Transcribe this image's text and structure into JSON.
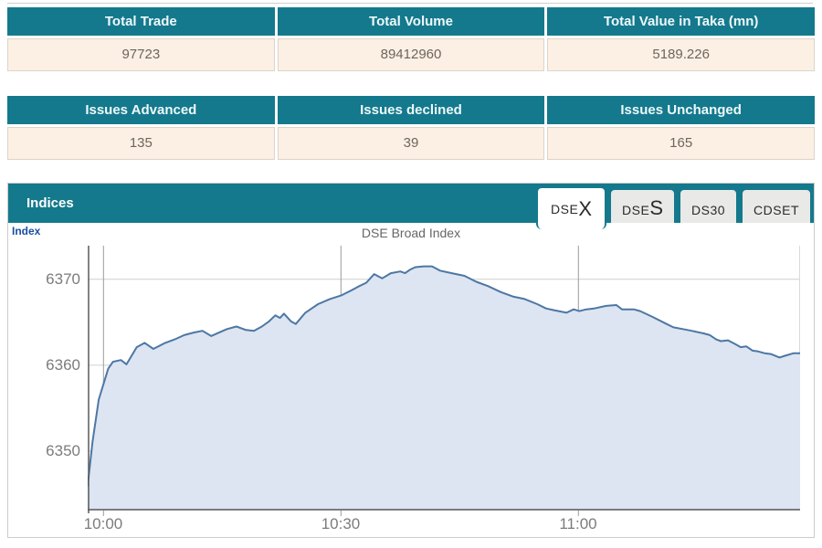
{
  "summary_tables": {
    "trade": {
      "headers": [
        "Total Trade",
        "Total Volume",
        "Total Value in Taka (mn)"
      ],
      "values": [
        "97723",
        "89412960",
        "5189.226"
      ]
    },
    "issues": {
      "headers": [
        "Issues Advanced",
        "Issues declined",
        "Issues Unchanged"
      ],
      "values": [
        "135",
        "39",
        "165"
      ]
    }
  },
  "indices_panel": {
    "title": "Indices",
    "tabs": [
      {
        "small": "DSE",
        "large": "X",
        "active": true
      },
      {
        "small": "DSE",
        "large": "S",
        "active": false
      },
      {
        "small": "DS30",
        "large": "",
        "active": false
      },
      {
        "small": "CDSET",
        "large": "",
        "active": false
      }
    ]
  },
  "chart_data": {
    "type": "area",
    "title": "DSE Broad Index",
    "ylabel": "Index",
    "x_ticks": [
      "10:00",
      "10:30",
      "11:00"
    ],
    "x_tick_minutes": [
      0,
      30,
      60
    ],
    "y_ticks": [
      "6370",
      "6360",
      "6350"
    ],
    "y_tick_values": [
      6370,
      6360,
      6350
    ],
    "x_range_minutes": [
      -2,
      88
    ],
    "y_range": [
      6343.1,
      6373.9
    ],
    "grid": true,
    "legend": "none",
    "line_color": "#4d77a3",
    "fill_color": "#dce5f1",
    "series": [
      {
        "name": "DSEX",
        "x_minutes": [
          -2,
          -1.4,
          -0.6,
          0.6,
          1.2,
          2.2,
          2.9,
          4.2,
          5.2,
          6.3,
          7.8,
          9,
          10.2,
          11.4,
          12.5,
          13.6,
          14.6,
          15.6,
          16.8,
          18,
          19,
          20,
          20.9,
          21.7,
          22.3,
          22.8,
          23.7,
          24.3,
          25.5,
          26.3,
          27.1,
          28.6,
          30,
          31.3,
          32.1,
          33.2,
          34.2,
          35.2,
          36.3,
          37.5,
          38.1,
          38.7,
          39.4,
          40.5,
          41.5,
          42.5,
          44,
          45.6,
          47.1,
          48.6,
          50.2,
          51.7,
          53.2,
          54.8,
          55.9,
          56.9,
          58.5,
          59.4,
          60.1,
          61,
          62,
          63.5,
          64.8,
          65.5,
          67,
          67.8,
          69.4,
          70.9,
          72,
          73.2,
          74.3,
          75.8,
          76.6,
          77.4,
          78,
          78.9,
          79.7,
          80.5,
          81.2,
          82,
          82.7,
          83.5,
          84.3,
          85.4,
          86.1,
          87.2,
          88
        ],
        "values": [
          6346,
          6351,
          6356,
          6359.6,
          6360.4,
          6360.6,
          6360.1,
          6362.1,
          6362.6,
          6361.9,
          6362.6,
          6363,
          6363.5,
          6363.8,
          6364,
          6363.4,
          6363.8,
          6364.2,
          6364.5,
          6364.1,
          6364,
          6364.5,
          6365.1,
          6365.8,
          6365.5,
          6366,
          6365.1,
          6364.8,
          6366.1,
          6366.6,
          6367.1,
          6367.7,
          6368.1,
          6368.7,
          6369.1,
          6369.6,
          6370.6,
          6370.1,
          6370.7,
          6370.9,
          6370.7,
          6371.1,
          6371.4,
          6371.5,
          6371.5,
          6371,
          6370.7,
          6370.4,
          6369.7,
          6369.2,
          6368.5,
          6368,
          6367.7,
          6367.1,
          6366.6,
          6366.4,
          6366.1,
          6366.5,
          6366.3,
          6366.5,
          6366.6,
          6366.9,
          6367,
          6366.5,
          6366.5,
          6366.3,
          6365.6,
          6364.9,
          6364.4,
          6364.2,
          6364,
          6363.7,
          6363.5,
          6363,
          6362.8,
          6362.9,
          6362.5,
          6362.1,
          6362.2,
          6361.7,
          6361.6,
          6361.4,
          6361.3,
          6360.9,
          6361.1,
          6361.4,
          6361.4
        ]
      }
    ]
  },
  "colors": {
    "teal": "#14798c",
    "cream_row": "#fbf0e3",
    "grid_h": "#cfcfcf",
    "grid_v": "#9b9b9b",
    "axis": "#5a5a5a"
  }
}
